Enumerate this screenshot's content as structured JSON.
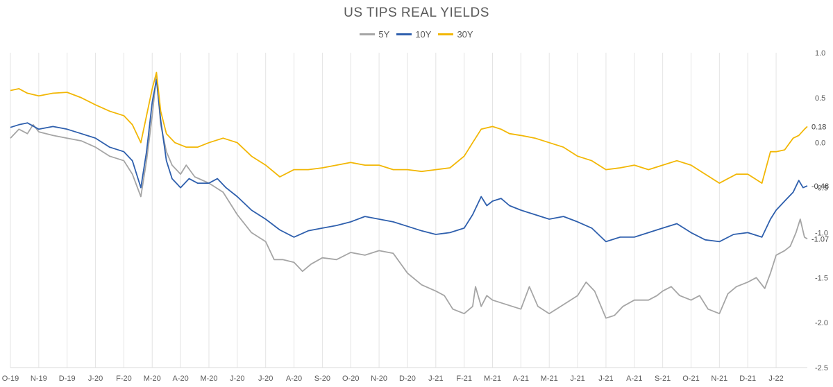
{
  "chart_data": {
    "type": "line",
    "title": "US TIPS REAL YIELDS",
    "xlabel": "",
    "ylabel": "",
    "ylim": [
      -2.5,
      1.0
    ],
    "yticks": [
      "1.0",
      "0.5",
      "0.0",
      "-0.5",
      "-1.0",
      "-1.5",
      "-2.0",
      "-2.5"
    ],
    "ytick_values": [
      1.0,
      0.5,
      0.0,
      -0.5,
      -1.0,
      -1.5,
      -2.0,
      -2.5
    ],
    "xticks": [
      "O-19",
      "N-19",
      "D-19",
      "J-20",
      "F-20",
      "M-20",
      "A-20",
      "M-20",
      "J-20",
      "J-20",
      "A-20",
      "S-20",
      "O-20",
      "N-20",
      "D-20",
      "J-21",
      "F-21",
      "M-21",
      "A-21",
      "M-21",
      "J-21",
      "J-21",
      "A-21",
      "S-21",
      "O-21",
      "N-21",
      "D-21",
      "J-22"
    ],
    "x_end": 28.1,
    "legend": "top-center",
    "grid": "vertical",
    "end_labels": [
      "-1.07",
      "-0.48",
      "0.18"
    ],
    "series": [
      {
        "name": "5Y",
        "color": "#a5a5a5",
        "points": [
          [
            0,
            0.05
          ],
          [
            0.3,
            0.15
          ],
          [
            0.6,
            0.1
          ],
          [
            0.8,
            0.2
          ],
          [
            1,
            0.12
          ],
          [
            1.5,
            0.08
          ],
          [
            2,
            0.05
          ],
          [
            2.5,
            0.02
          ],
          [
            3,
            -0.05
          ],
          [
            3.5,
            -0.15
          ],
          [
            4,
            -0.2
          ],
          [
            4.3,
            -0.35
          ],
          [
            4.6,
            -0.6
          ],
          [
            4.8,
            -0.2
          ],
          [
            5.0,
            0.3
          ],
          [
            5.15,
            0.75
          ],
          [
            5.3,
            0.2
          ],
          [
            5.5,
            -0.1
          ],
          [
            5.7,
            -0.25
          ],
          [
            6,
            -0.35
          ],
          [
            6.2,
            -0.25
          ],
          [
            6.5,
            -0.38
          ],
          [
            7,
            -0.45
          ],
          [
            7.5,
            -0.55
          ],
          [
            8,
            -0.8
          ],
          [
            8.5,
            -1.0
          ],
          [
            9,
            -1.1
          ],
          [
            9.3,
            -1.3
          ],
          [
            9.6,
            -1.3
          ],
          [
            10,
            -1.33
          ],
          [
            10.3,
            -1.43
          ],
          [
            10.6,
            -1.35
          ],
          [
            11,
            -1.28
          ],
          [
            11.5,
            -1.3
          ],
          [
            12,
            -1.22
          ],
          [
            12.5,
            -1.25
          ],
          [
            13,
            -1.2
          ],
          [
            13.5,
            -1.23
          ],
          [
            14,
            -1.45
          ],
          [
            14.5,
            -1.58
          ],
          [
            15,
            -1.65
          ],
          [
            15.3,
            -1.7
          ],
          [
            15.6,
            -1.85
          ],
          [
            16,
            -1.9
          ],
          [
            16.3,
            -1.82
          ],
          [
            16.4,
            -1.6
          ],
          [
            16.6,
            -1.82
          ],
          [
            16.8,
            -1.7
          ],
          [
            17,
            -1.75
          ],
          [
            17.5,
            -1.8
          ],
          [
            18,
            -1.85
          ],
          [
            18.3,
            -1.6
          ],
          [
            18.6,
            -1.82
          ],
          [
            19,
            -1.9
          ],
          [
            19.5,
            -1.8
          ],
          [
            20,
            -1.7
          ],
          [
            20.3,
            -1.55
          ],
          [
            20.6,
            -1.65
          ],
          [
            21,
            -1.95
          ],
          [
            21.3,
            -1.92
          ],
          [
            21.6,
            -1.82
          ],
          [
            22,
            -1.75
          ],
          [
            22.5,
            -1.75
          ],
          [
            22.8,
            -1.7
          ],
          [
            23,
            -1.65
          ],
          [
            23.3,
            -1.6
          ],
          [
            23.6,
            -1.7
          ],
          [
            24,
            -1.75
          ],
          [
            24.3,
            -1.7
          ],
          [
            24.6,
            -1.85
          ],
          [
            25,
            -1.9
          ],
          [
            25.3,
            -1.68
          ],
          [
            25.6,
            -1.6
          ],
          [
            26,
            -1.55
          ],
          [
            26.3,
            -1.5
          ],
          [
            26.6,
            -1.62
          ],
          [
            26.8,
            -1.45
          ],
          [
            27,
            -1.25
          ],
          [
            27.3,
            -1.2
          ],
          [
            27.5,
            -1.15
          ],
          [
            27.7,
            -1.0
          ],
          [
            27.85,
            -0.85
          ],
          [
            28.0,
            -1.05
          ],
          [
            28.1,
            -1.07
          ]
        ]
      },
      {
        "name": "10Y",
        "color": "#2e5fad",
        "points": [
          [
            0,
            0.17
          ],
          [
            0.3,
            0.2
          ],
          [
            0.6,
            0.22
          ],
          [
            1,
            0.15
          ],
          [
            1.5,
            0.18
          ],
          [
            2,
            0.15
          ],
          [
            2.5,
            0.1
          ],
          [
            3,
            0.05
          ],
          [
            3.5,
            -0.05
          ],
          [
            4,
            -0.1
          ],
          [
            4.3,
            -0.2
          ],
          [
            4.6,
            -0.5
          ],
          [
            4.8,
            -0.1
          ],
          [
            5.0,
            0.45
          ],
          [
            5.15,
            0.7
          ],
          [
            5.3,
            0.25
          ],
          [
            5.5,
            -0.2
          ],
          [
            5.7,
            -0.4
          ],
          [
            6,
            -0.5
          ],
          [
            6.3,
            -0.4
          ],
          [
            6.6,
            -0.45
          ],
          [
            7,
            -0.45
          ],
          [
            7.3,
            -0.4
          ],
          [
            7.6,
            -0.5
          ],
          [
            8,
            -0.6
          ],
          [
            8.5,
            -0.75
          ],
          [
            9,
            -0.85
          ],
          [
            9.5,
            -0.97
          ],
          [
            10,
            -1.05
          ],
          [
            10.5,
            -0.98
          ],
          [
            11,
            -0.95
          ],
          [
            11.5,
            -0.92
          ],
          [
            12,
            -0.88
          ],
          [
            12.5,
            -0.82
          ],
          [
            13,
            -0.85
          ],
          [
            13.5,
            -0.88
          ],
          [
            14,
            -0.93
          ],
          [
            14.5,
            -0.98
          ],
          [
            15,
            -1.02
          ],
          [
            15.5,
            -1.0
          ],
          [
            16,
            -0.95
          ],
          [
            16.3,
            -0.8
          ],
          [
            16.6,
            -0.6
          ],
          [
            16.8,
            -0.7
          ],
          [
            17,
            -0.65
          ],
          [
            17.3,
            -0.62
          ],
          [
            17.6,
            -0.7
          ],
          [
            18,
            -0.75
          ],
          [
            18.5,
            -0.8
          ],
          [
            19,
            -0.85
          ],
          [
            19.5,
            -0.82
          ],
          [
            20,
            -0.88
          ],
          [
            20.5,
            -0.95
          ],
          [
            21,
            -1.1
          ],
          [
            21.5,
            -1.05
          ],
          [
            22,
            -1.05
          ],
          [
            22.5,
            -1.0
          ],
          [
            23,
            -0.95
          ],
          [
            23.5,
            -0.9
          ],
          [
            24,
            -1.0
          ],
          [
            24.5,
            -1.08
          ],
          [
            25,
            -1.1
          ],
          [
            25.5,
            -1.02
          ],
          [
            26,
            -1.0
          ],
          [
            26.5,
            -1.05
          ],
          [
            26.8,
            -0.85
          ],
          [
            27,
            -0.75
          ],
          [
            27.3,
            -0.65
          ],
          [
            27.6,
            -0.55
          ],
          [
            27.8,
            -0.42
          ],
          [
            27.95,
            -0.5
          ],
          [
            28.1,
            -0.48
          ]
        ]
      },
      {
        "name": "30Y",
        "color": "#f2b705",
        "points": [
          [
            0,
            0.58
          ],
          [
            0.3,
            0.6
          ],
          [
            0.6,
            0.55
          ],
          [
            1,
            0.52
          ],
          [
            1.5,
            0.55
          ],
          [
            2,
            0.56
          ],
          [
            2.5,
            0.5
          ],
          [
            3,
            0.42
          ],
          [
            3.5,
            0.35
          ],
          [
            4,
            0.3
          ],
          [
            4.3,
            0.2
          ],
          [
            4.6,
            0.0
          ],
          [
            4.8,
            0.3
          ],
          [
            5.0,
            0.6
          ],
          [
            5.15,
            0.78
          ],
          [
            5.3,
            0.35
          ],
          [
            5.5,
            0.1
          ],
          [
            5.8,
            0.0
          ],
          [
            6.2,
            -0.05
          ],
          [
            6.6,
            -0.05
          ],
          [
            7,
            0.0
          ],
          [
            7.5,
            0.05
          ],
          [
            8,
            0.0
          ],
          [
            8.5,
            -0.15
          ],
          [
            9,
            -0.25
          ],
          [
            9.5,
            -0.38
          ],
          [
            10,
            -0.3
          ],
          [
            10.5,
            -0.3
          ],
          [
            11,
            -0.28
          ],
          [
            11.5,
            -0.25
          ],
          [
            12,
            -0.22
          ],
          [
            12.5,
            -0.25
          ],
          [
            13,
            -0.25
          ],
          [
            13.5,
            -0.3
          ],
          [
            14,
            -0.3
          ],
          [
            14.5,
            -0.32
          ],
          [
            15,
            -0.3
          ],
          [
            15.5,
            -0.28
          ],
          [
            16,
            -0.15
          ],
          [
            16.3,
            0.0
          ],
          [
            16.6,
            0.15
          ],
          [
            17,
            0.18
          ],
          [
            17.3,
            0.15
          ],
          [
            17.6,
            0.1
          ],
          [
            18,
            0.08
          ],
          [
            18.5,
            0.05
          ],
          [
            19,
            0.0
          ],
          [
            19.5,
            -0.05
          ],
          [
            20,
            -0.15
          ],
          [
            20.5,
            -0.2
          ],
          [
            21,
            -0.3
          ],
          [
            21.5,
            -0.28
          ],
          [
            22,
            -0.25
          ],
          [
            22.5,
            -0.3
          ],
          [
            23,
            -0.25
          ],
          [
            23.5,
            -0.2
          ],
          [
            24,
            -0.25
          ],
          [
            24.5,
            -0.35
          ],
          [
            25,
            -0.45
          ],
          [
            25.3,
            -0.4
          ],
          [
            25.6,
            -0.35
          ],
          [
            26,
            -0.35
          ],
          [
            26.5,
            -0.45
          ],
          [
            26.8,
            -0.1
          ],
          [
            27,
            -0.1
          ],
          [
            27.3,
            -0.08
          ],
          [
            27.6,
            0.05
          ],
          [
            27.8,
            0.08
          ],
          [
            28.0,
            0.15
          ],
          [
            28.1,
            0.18
          ]
        ]
      }
    ]
  }
}
